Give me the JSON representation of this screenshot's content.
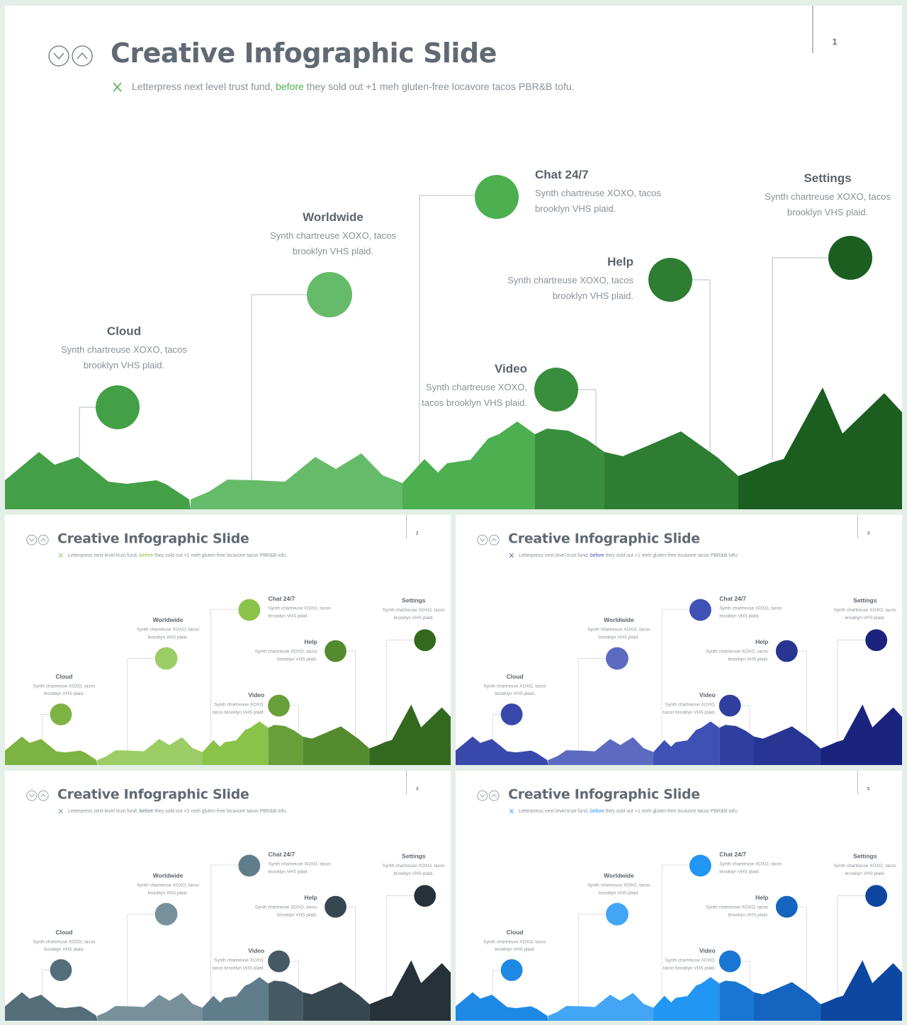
{
  "title": "Creative Infographic Slide",
  "subtitle_parts": {
    "before": "Letterpress next level trust fund, ",
    "highlight": "before",
    "after": " they sold out +1 meh gluten-free locavore tacos PBR&B tofu."
  },
  "items": [
    {
      "key": "cloud",
      "title": "Cloud",
      "line1": "Synth chartreuse XOXO, tacos",
      "line2": "brooklyn VHS plaid."
    },
    {
      "key": "worldwide",
      "title": "Worldwide",
      "line1": "Synth chartreuse XOXO, tacos",
      "line2": "brooklyn VHS plaid."
    },
    {
      "key": "chat",
      "title": "Chat 24/7",
      "line1": "Synth chartreuse XOXO, tacos",
      "line2": "brooklyn VHS plaid."
    },
    {
      "key": "video",
      "title": "Video",
      "line1": "Synth chartreuse XOXO,",
      "line2": "tacos brooklyn VHS plaid."
    },
    {
      "key": "help",
      "title": "Help",
      "line1": "Synth chartreuse XOXO, tacos",
      "line2": "brooklyn VHS plaid."
    },
    {
      "key": "settings",
      "title": "Settings",
      "line1": "Synth chartreuse XOXO, tacos",
      "line2": "brooklyn VHS plaid."
    }
  ],
  "slides": [
    {
      "number": "1",
      "theme": {
        "accent": "#4caf50",
        "c1": "#43a047",
        "c2": "#66bb6a",
        "c3": "#4caf50",
        "c4": "#388e3c",
        "c5": "#2e7d32",
        "c6": "#1b5e20"
      }
    },
    {
      "number": "2",
      "theme": {
        "accent": "#8bc34a",
        "c1": "#7cb342",
        "c2": "#9ccc65",
        "c3": "#8bc34a",
        "c4": "#689f38",
        "c5": "#558b2f",
        "c6": "#33691e"
      }
    },
    {
      "number": "3",
      "theme": {
        "accent": "#3f51b5",
        "c1": "#3949ab",
        "c2": "#5c6bc0",
        "c3": "#3f51b5",
        "c4": "#303f9f",
        "c5": "#283593",
        "c6": "#1a237e"
      }
    },
    {
      "number": "4",
      "theme": {
        "accent": "#607d8b",
        "c1": "#546e7a",
        "c2": "#78909c",
        "c3": "#607d8b",
        "c4": "#455a64",
        "c5": "#37474f",
        "c6": "#263238"
      }
    },
    {
      "number": "5",
      "theme": {
        "accent": "#2196f3",
        "c1": "#1e88e5",
        "c2": "#42a5f5",
        "c3": "#2196f3",
        "c4": "#1976d2",
        "c5": "#1565c0",
        "c6": "#0d47a1"
      }
    }
  ]
}
